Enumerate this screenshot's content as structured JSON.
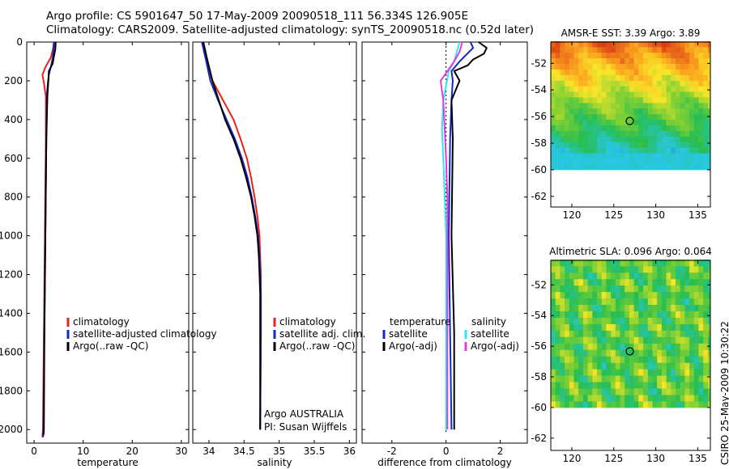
{
  "header": {
    "line1": "Argo profile: CS 5901647_50 17-May-2009 20090518_111 56.334S 126.905E",
    "line2": "Climatology: CARS2009. Satellite-adjusted climatology: synTS_20090518.nc (0.52d later)"
  },
  "stamp": "CSIRO 25-May-2009 10:30:22",
  "colors": {
    "red": "#e8231b",
    "blue": "#1428c8",
    "black": "#000000",
    "cyan": "#33e6ee",
    "magenta": "#e43ce0"
  },
  "chart_data": [
    {
      "type": "line",
      "name": "temperature",
      "xlabel": "temperature",
      "xlim": [
        -1.5,
        31.5
      ],
      "xticks": [
        0,
        10,
        20,
        30
      ],
      "xtick_labels": [
        "0",
        "10",
        "20",
        "30"
      ],
      "ylim": [
        2070,
        0
      ],
      "yticks": [
        0,
        200,
        400,
        600,
        800,
        1000,
        1200,
        1400,
        1600,
        1800,
        2000
      ],
      "ytick_labels": [
        "0",
        "200",
        "400",
        "600",
        "800",
        "1000",
        "1200",
        "1400",
        "1600",
        "1800",
        "2000"
      ],
      "legend": [
        "climatology",
        "satellite-adjusted climatology",
        "Argo(..raw -QC)"
      ],
      "series": [
        {
          "name": "climatology",
          "color": "red",
          "points": [
            [
              4.0,
              0
            ],
            [
              3.9,
              30
            ],
            [
              3.4,
              80
            ],
            [
              2.3,
              130
            ],
            [
              1.7,
              170
            ],
            [
              2.0,
              210
            ],
            [
              2.4,
              280
            ],
            [
              2.4,
              500
            ],
            [
              2.2,
              1000
            ],
            [
              2.0,
              1500
            ],
            [
              1.8,
              2000
            ],
            [
              1.7,
              2040
            ]
          ]
        },
        {
          "name": "satellite-adjusted climatology",
          "color": "blue",
          "points": [
            [
              4.1,
              0
            ],
            [
              4.0,
              30
            ],
            [
              3.8,
              80
            ],
            [
              3.4,
              130
            ],
            [
              3.0,
              170
            ],
            [
              2.8,
              210
            ],
            [
              2.6,
              280
            ],
            [
              2.5,
              500
            ],
            [
              2.3,
              1000
            ],
            [
              2.1,
              1500
            ],
            [
              1.9,
              2000
            ],
            [
              1.8,
              2040
            ]
          ]
        },
        {
          "name": "Argo(..raw -QC)",
          "color": "black",
          "points": [
            [
              4.4,
              0
            ],
            [
              4.3,
              40
            ],
            [
              4.0,
              80
            ],
            [
              3.8,
              110
            ],
            [
              3.0,
              150
            ],
            [
              2.9,
              200
            ],
            [
              2.7,
              280
            ],
            [
              2.5,
              500
            ],
            [
              2.3,
              1000
            ],
            [
              2.1,
              1500
            ],
            [
              2.0,
              2000
            ],
            [
              1.9,
              2030
            ]
          ]
        }
      ]
    },
    {
      "type": "line",
      "name": "salinity",
      "xlabel": "salinity",
      "xlim": [
        33.77,
        36.1
      ],
      "xticks": [
        34,
        34.5,
        35,
        35.5,
        36
      ],
      "xtick_labels": [
        "34",
        "34.5",
        "35",
        "35.5",
        "36"
      ],
      "ylim": [
        2070,
        0
      ],
      "legend": [
        "climatology",
        "satellite adj. clim.",
        "Argo(..raw -QC)"
      ],
      "annotations": [
        "Argo AUSTRALIA",
        "PI: Susan Wijffels"
      ],
      "series": [
        {
          "name": "climatology",
          "color": "red",
          "points": [
            [
              33.9,
              0
            ],
            [
              33.95,
              80
            ],
            [
              34.05,
              200
            ],
            [
              34.2,
              300
            ],
            [
              34.35,
              400
            ],
            [
              34.45,
              500
            ],
            [
              34.54,
              600
            ],
            [
              34.6,
              700
            ],
            [
              34.65,
              800
            ],
            [
              34.69,
              900
            ],
            [
              34.72,
              1000
            ],
            [
              34.73,
              1100
            ],
            [
              34.74,
              1200
            ],
            [
              34.74,
              1300
            ],
            [
              34.74,
              1500
            ],
            [
              34.73,
              2000
            ]
          ]
        },
        {
          "name": "satellite adj. clim.",
          "color": "blue",
          "points": [
            [
              33.9,
              0
            ],
            [
              33.95,
              80
            ],
            [
              34.02,
              200
            ],
            [
              34.13,
              300
            ],
            [
              34.25,
              400
            ],
            [
              34.37,
              500
            ],
            [
              34.47,
              600
            ],
            [
              34.55,
              700
            ],
            [
              34.61,
              800
            ],
            [
              34.66,
              900
            ],
            [
              34.7,
              1000
            ],
            [
              34.72,
              1100
            ],
            [
              34.73,
              1200
            ],
            [
              34.74,
              1300
            ],
            [
              34.74,
              1500
            ],
            [
              34.73,
              2000
            ]
          ]
        },
        {
          "name": "Argo(..raw -QC)",
          "color": "black",
          "points": [
            [
              33.92,
              0
            ],
            [
              33.97,
              80
            ],
            [
              34.05,
              200
            ],
            [
              34.14,
              300
            ],
            [
              34.23,
              400
            ],
            [
              34.35,
              500
            ],
            [
              34.45,
              600
            ],
            [
              34.53,
              700
            ],
            [
              34.6,
              800
            ],
            [
              34.65,
              900
            ],
            [
              34.69,
              1000
            ],
            [
              34.71,
              1100
            ],
            [
              34.72,
              1200
            ],
            [
              34.73,
              1300
            ],
            [
              34.73,
              1500
            ],
            [
              34.73,
              2000
            ]
          ]
        }
      ]
    },
    {
      "type": "line",
      "name": "difference",
      "xlabel": "difference from climatology",
      "xlim": [
        -3.1,
        3.0
      ],
      "xticks": [
        -2,
        0,
        2
      ],
      "xtick_labels": [
        "-2",
        "0",
        "2"
      ],
      "ylim": [
        2070,
        0
      ],
      "legend_left_title": "temperature",
      "legend_left": [
        "satellite",
        "Argo(-adj)"
      ],
      "legend_right_title": "salinity",
      "legend_right": [
        "satellite",
        "Argo(-adj)"
      ],
      "series": [
        {
          "name": "temperature satellite",
          "color": "blue",
          "points": [
            [
              0.9,
              0
            ],
            [
              1.0,
              30
            ],
            [
              0.5,
              100
            ],
            [
              0.2,
              150
            ],
            [
              0.25,
              200
            ],
            [
              0.2,
              300
            ],
            [
              0.15,
              500
            ],
            [
              0.1,
              1000
            ],
            [
              0.15,
              1500
            ],
            [
              0.2,
              2000
            ]
          ]
        },
        {
          "name": "temperature Argo(-adj)",
          "color": "black",
          "points": [
            [
              1.2,
              0
            ],
            [
              1.5,
              30
            ],
            [
              1.4,
              60
            ],
            [
              1.0,
              90
            ],
            [
              0.8,
              120
            ],
            [
              0.3,
              150
            ],
            [
              0.5,
              200
            ],
            [
              0.2,
              300
            ],
            [
              0.25,
              500
            ],
            [
              0.2,
              1000
            ],
            [
              0.3,
              1500
            ],
            [
              0.3,
              2000
            ]
          ]
        },
        {
          "name": "salinity satellite",
          "color": "cyan",
          "points": [
            [
              0.5,
              0
            ],
            [
              0.4,
              50
            ],
            [
              0.3,
              100
            ],
            [
              0.1,
              150
            ],
            [
              -0.1,
              300
            ],
            [
              -0.15,
              450
            ],
            [
              -0.1,
              600
            ],
            [
              -0.05,
              800
            ],
            [
              0.0,
              1000
            ],
            [
              0.0,
              1500
            ],
            [
              0.0,
              2000
            ]
          ]
        },
        {
          "name": "salinity Argo(-adj)",
          "color": "magenta",
          "points": [
            [
              0.6,
              0
            ],
            [
              0.5,
              50
            ],
            [
              0.3,
              100
            ],
            [
              -0.2,
              200
            ],
            [
              -0.1,
              300
            ],
            [
              -0.05,
              450
            ],
            [
              0.0,
              600
            ],
            [
              0.05,
              800
            ],
            [
              0.05,
              1000
            ],
            [
              0.05,
              1500
            ],
            [
              0.05,
              2000
            ]
          ]
        }
      ]
    },
    {
      "type": "heatmap",
      "name": "sst-map",
      "title": "AMSR-E SST: 3.39 Argo: 3.89",
      "xlim": [
        117.5,
        136.5
      ],
      "ylim": [
        -62.8,
        -50.4
      ],
      "xticks": [
        120,
        125,
        130,
        135
      ],
      "xtick_labels": [
        "120",
        "125",
        "130",
        "135"
      ],
      "yticks": [
        -52,
        -54,
        -56,
        -58,
        -60,
        -62
      ],
      "ytick_labels": [
        "-52",
        "-54",
        "-56",
        "-58",
        "-60",
        "-62"
      ],
      "data_lat_range": [
        -60,
        -50.4
      ],
      "float_position": [
        126.905,
        -56.334
      ]
    },
    {
      "type": "heatmap",
      "name": "sla-map",
      "title": "Altimetric SLA: 0.096 Argo: 0.064",
      "xlim": [
        117.5,
        136.5
      ],
      "ylim": [
        -62.8,
        -50.4
      ],
      "xticks": [
        120,
        125,
        130,
        135
      ],
      "xtick_labels": [
        "120",
        "125",
        "130",
        "135"
      ],
      "yticks": [
        -52,
        -54,
        -56,
        -58,
        -60,
        -62
      ],
      "ytick_labels": [
        "-52",
        "-54",
        "-56",
        "-58",
        "-60",
        "-62"
      ],
      "data_lat_range": [
        -60,
        -50.4
      ],
      "float_position": [
        126.905,
        -56.334
      ]
    }
  ]
}
